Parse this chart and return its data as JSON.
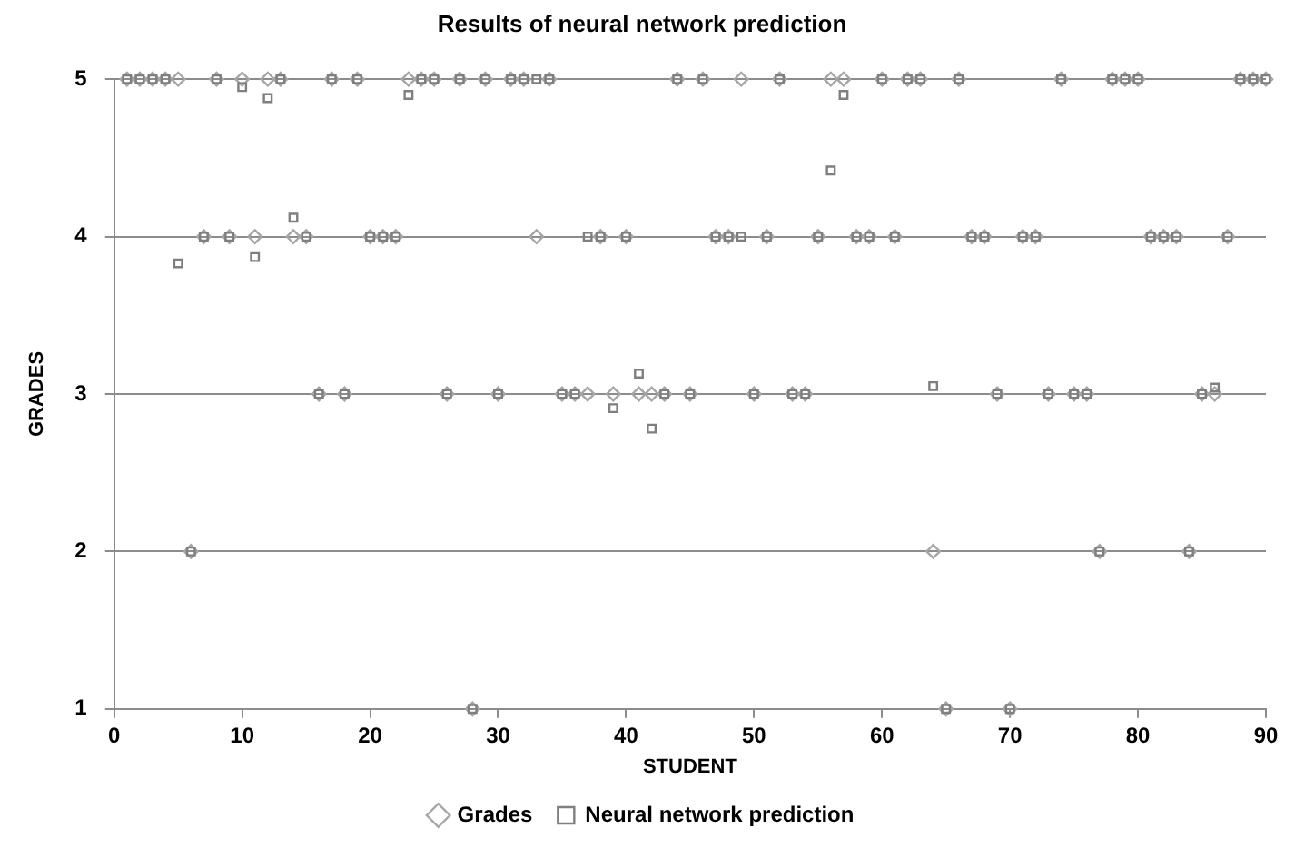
{
  "chart_data": {
    "type": "scatter",
    "title": "Results of neural network prediction",
    "xlabel": "STUDENT",
    "ylabel": "GRADES",
    "series": [
      {
        "name": "Grades",
        "color": "#a6a6a6",
        "marker": "diamond",
        "x": [
          1,
          2,
          3,
          4,
          5,
          6,
          7,
          8,
          9,
          10,
          11,
          12,
          13,
          14,
          15,
          16,
          17,
          18,
          19,
          20,
          21,
          22,
          23,
          24,
          25,
          26,
          27,
          28,
          29,
          30,
          31,
          32,
          33,
          34,
          35,
          36,
          37,
          38,
          39,
          40,
          41,
          42,
          43,
          44,
          45,
          46,
          47,
          48,
          49,
          50,
          51,
          52,
          53,
          54,
          55,
          56,
          57,
          58,
          59,
          60,
          61,
          62,
          63,
          64,
          65,
          66,
          67,
          68,
          69,
          70,
          71,
          72,
          73,
          74,
          75,
          76,
          77,
          78,
          79,
          80,
          81,
          82,
          83,
          84,
          85,
          86,
          87,
          88,
          89,
          90
        ],
        "values": [
          5,
          5,
          5,
          5,
          5,
          2,
          4,
          5,
          4,
          5,
          4,
          5,
          5,
          4,
          4,
          3,
          5,
          3,
          5,
          4,
          4,
          4,
          5,
          5,
          5,
          3,
          5,
          1,
          5,
          3,
          5,
          5,
          4,
          5,
          3,
          3,
          3,
          4,
          3,
          4,
          3,
          3,
          3,
          5,
          3,
          5,
          4,
          4,
          5,
          3,
          4,
          5,
          3,
          3,
          4,
          5,
          5,
          4,
          4,
          5,
          4,
          5,
          5,
          2,
          1,
          5,
          4,
          4,
          3,
          1,
          4,
          4,
          3,
          5,
          3,
          3,
          2,
          5,
          5,
          5,
          4,
          4,
          4,
          2,
          3,
          3,
          4,
          5,
          5,
          5
        ]
      },
      {
        "name": "Neural network prediction",
        "color": "#7f7f7f",
        "marker": "square",
        "x": [
          1,
          2,
          3,
          4,
          5,
          6,
          7,
          8,
          9,
          10,
          11,
          12,
          13,
          14,
          15,
          16,
          17,
          18,
          19,
          20,
          21,
          22,
          23,
          24,
          25,
          26,
          27,
          28,
          29,
          30,
          31,
          32,
          33,
          34,
          35,
          36,
          37,
          38,
          39,
          40,
          41,
          42,
          43,
          44,
          45,
          46,
          47,
          48,
          49,
          50,
          51,
          52,
          53,
          54,
          55,
          56,
          57,
          58,
          59,
          60,
          61,
          62,
          63,
          64,
          65,
          66,
          67,
          68,
          69,
          70,
          71,
          72,
          73,
          74,
          75,
          76,
          77,
          78,
          79,
          80,
          81,
          82,
          83,
          84,
          85,
          86,
          87,
          88,
          89,
          90
        ],
        "values": [
          5,
          5,
          5,
          5,
          3.83,
          2,
          4,
          5,
          4,
          4.95,
          3.87,
          4.88,
          5,
          4.12,
          4,
          3,
          5,
          3,
          5,
          4,
          4,
          4,
          4.9,
          5,
          5,
          3,
          5,
          1,
          5,
          3,
          5,
          5,
          5,
          5,
          3,
          3,
          4,
          4,
          2.91,
          4,
          3.13,
          2.78,
          3,
          5,
          3,
          5,
          4,
          4,
          4,
          3,
          4,
          5,
          3,
          3,
          4,
          4.42,
          4.9,
          4,
          4,
          5,
          4,
          5,
          5,
          3.05,
          1,
          5,
          4,
          4,
          3,
          1,
          4,
          4,
          3,
          5,
          3,
          3,
          2,
          5,
          5,
          5,
          4,
          4,
          4,
          2,
          3,
          3.04,
          4,
          5,
          5,
          5
        ]
      }
    ],
    "xlim": [
      0,
      90
    ],
    "xticks": [
      0,
      10,
      20,
      30,
      40,
      50,
      60,
      70,
      80,
      90
    ],
    "ylim": [
      1,
      5
    ],
    "yticks": [
      1,
      2,
      3,
      4,
      5
    ],
    "grid": "y",
    "legend": "bottom"
  }
}
